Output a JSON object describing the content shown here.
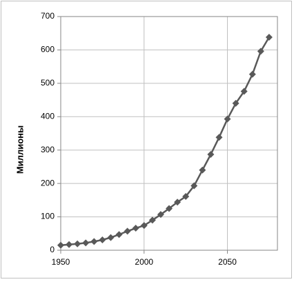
{
  "chart_data": {
    "type": "line",
    "y_label": "Миллионы",
    "x": [
      1950,
      1955,
      1960,
      1965,
      1970,
      1975,
      1980,
      1985,
      1990,
      1995,
      2000,
      2005,
      2010,
      2015,
      2020,
      2025,
      2030,
      2035,
      2040,
      2045,
      2050,
      2055,
      2060,
      2065,
      2070,
      2075
    ],
    "series": [
      {
        "color": "#595959",
        "values": [
          15,
          17,
          19,
          22,
          26,
          31,
          38,
          47,
          57,
          66,
          74,
          90,
          107,
          125,
          144,
          161,
          193,
          240,
          287,
          338,
          393,
          440,
          476,
          527,
          596,
          638
        ]
      }
    ],
    "xlim": [
      1950,
      2080
    ],
    "xticks": [
      1950,
      2000,
      2050
    ],
    "ylim": [
      0,
      700
    ],
    "yticks": [
      0,
      100,
      200,
      300,
      400,
      500,
      600,
      700
    ],
    "grid": true
  }
}
